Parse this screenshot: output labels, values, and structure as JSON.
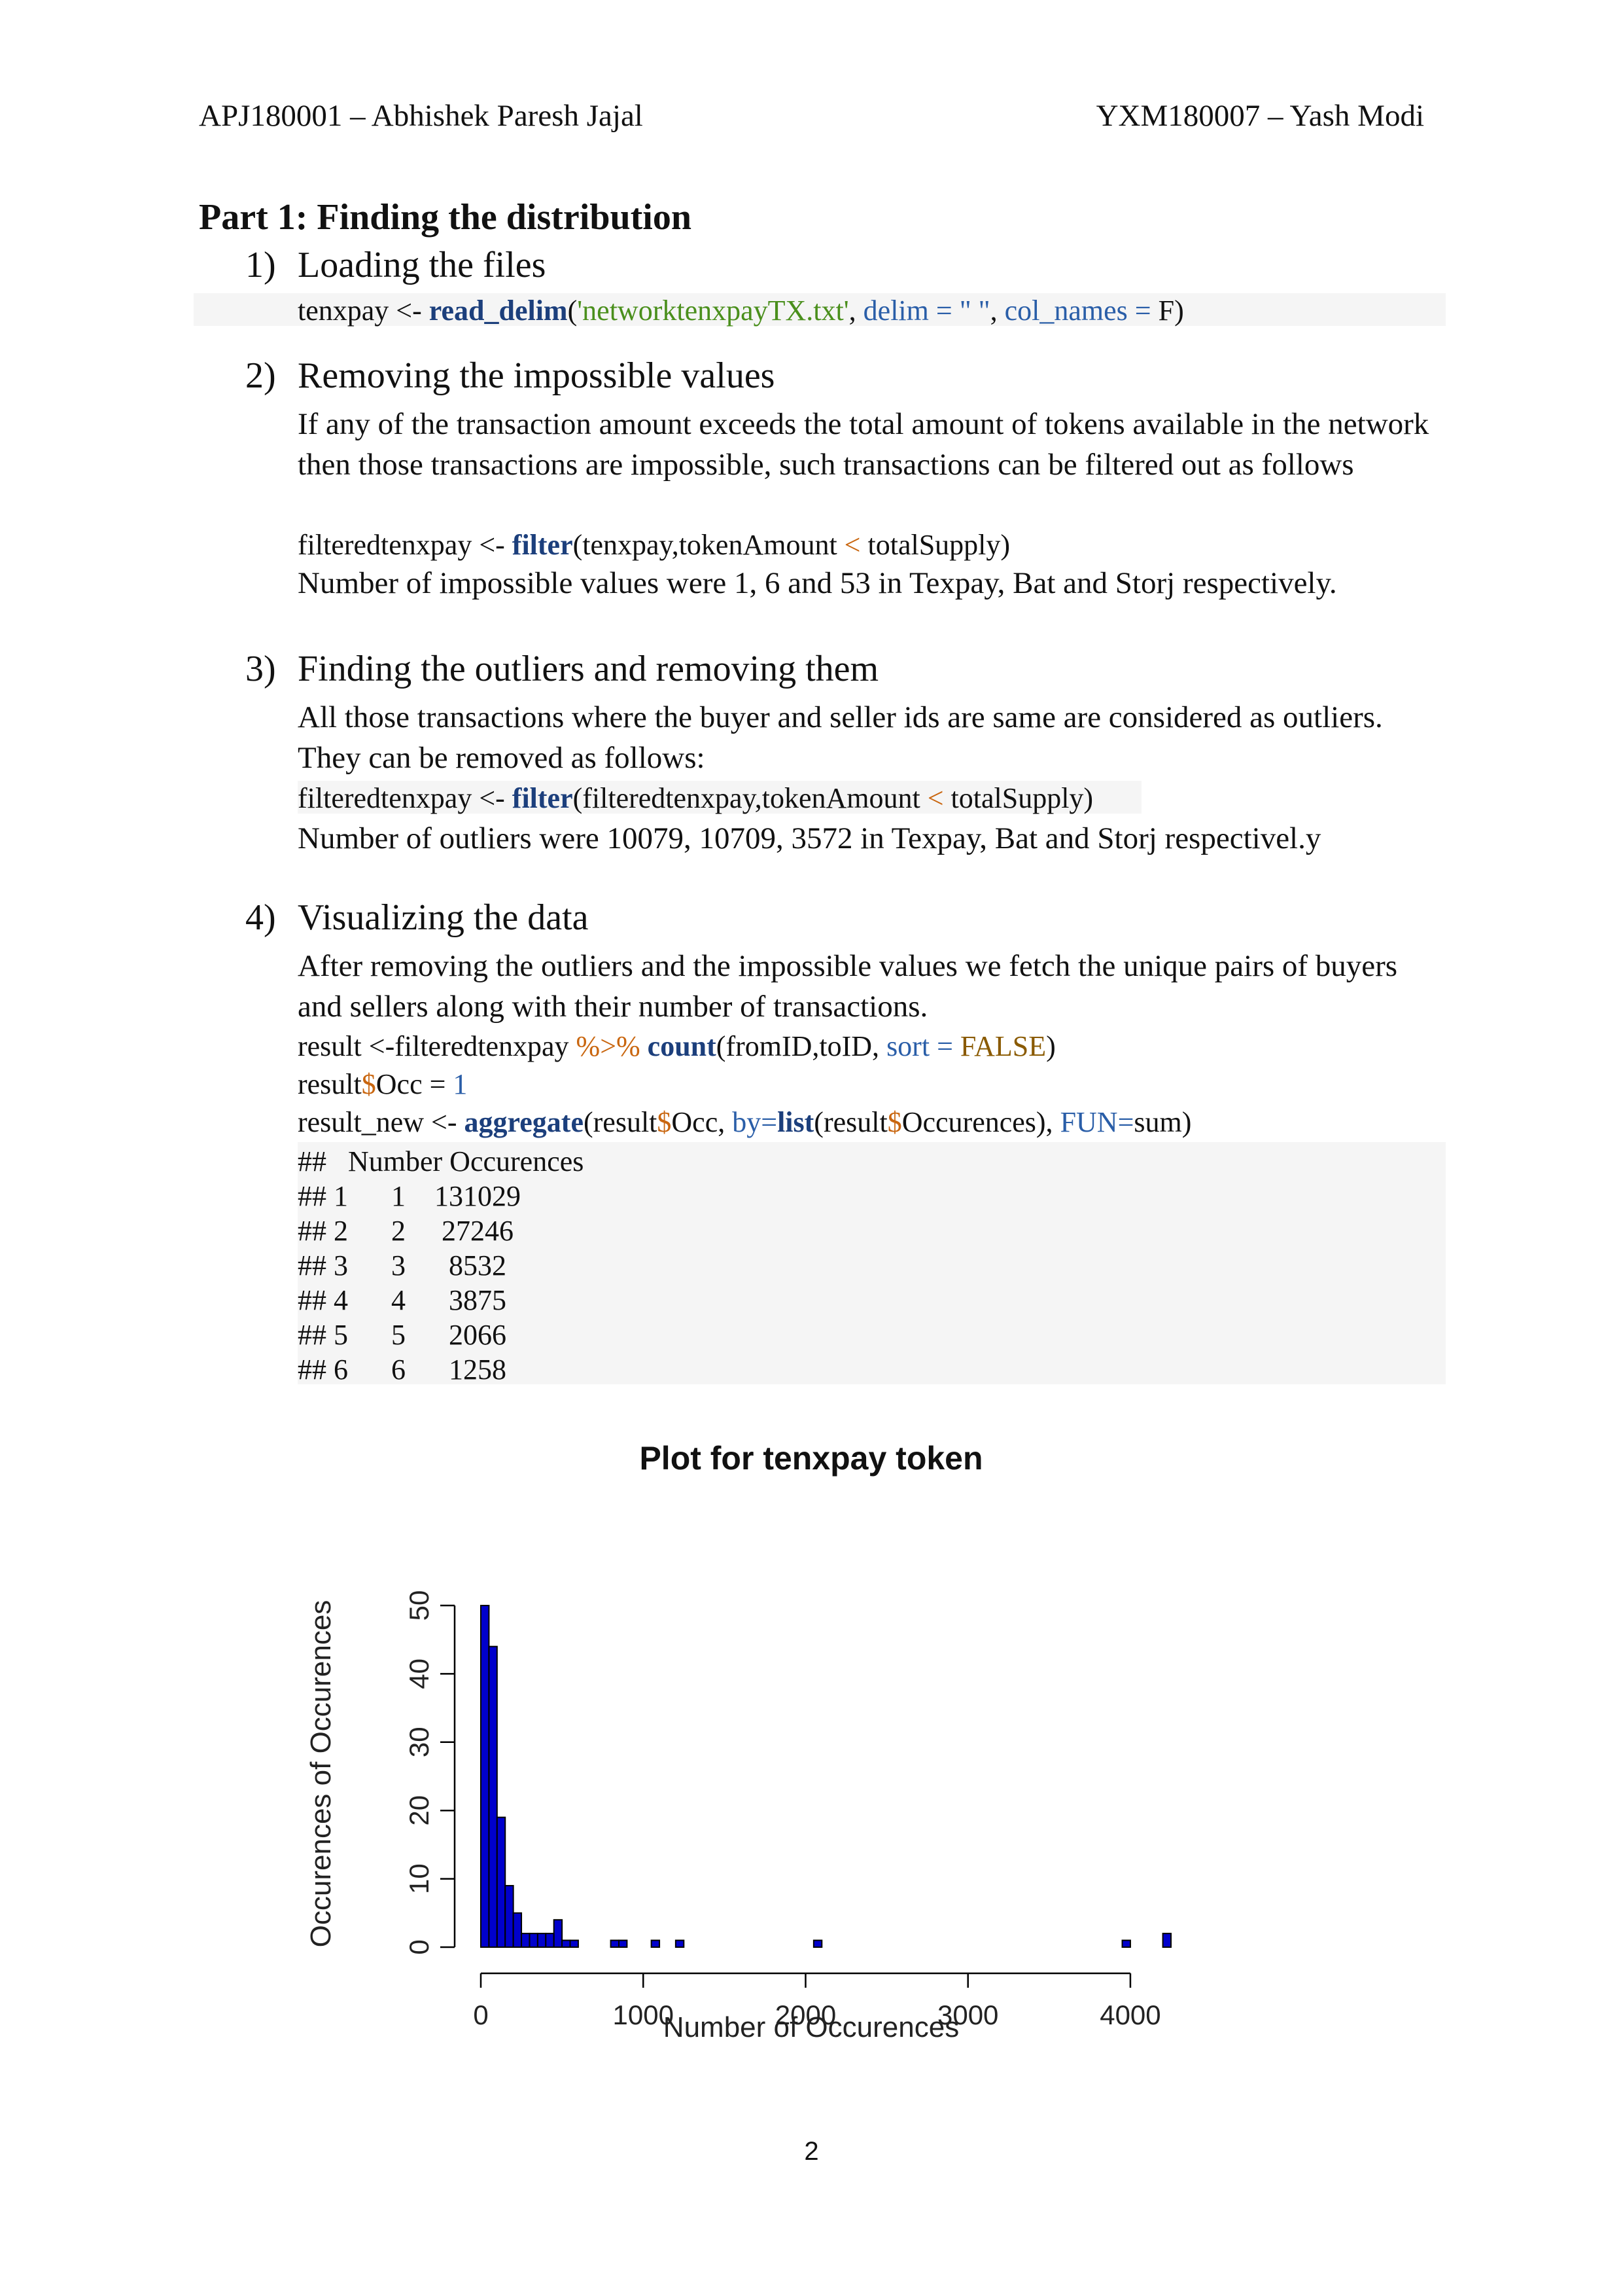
{
  "header": {
    "left": "APJ180001 – Abhishek Paresh Jajal",
    "right": "YXM180007 – Yash Modi"
  },
  "part_title": "Part 1: Finding the distribution",
  "sections": [
    {
      "num": "1)",
      "title": "Loading the files",
      "code": {
        "a": "tenxpay <- ",
        "fn": "read_delim",
        "b": "(",
        "str": "'networktenxpayTX.txt'",
        "c": ", ",
        "arg1": "delim = \" \"",
        "d": ", ",
        "arg2": "col_names = ",
        "e": "F)"
      }
    },
    {
      "num": "2)",
      "title": "Removing the impossible values",
      "para": "If any of the transaction amount exceeds the total amount of tokens available in the network then those transactions are impossible, such transactions can be filtered out as follows",
      "code": {
        "a": "filteredtenxpay <- ",
        "fn": "filter",
        "b": "(tenxpay,tokenAmount ",
        "op": "<",
        "c": " totalSupply)"
      },
      "after": "Number of impossible values were 1, 6 and 53 in Texpay, Bat and Storj respectively."
    },
    {
      "num": "3)",
      "title": "Finding the outliers and removing them",
      "para": "All those transactions where the buyer and seller ids are same are considered as outliers. They can be removed as follows:",
      "code": {
        "a": "filteredtenxpay <- ",
        "fn": "filter",
        "b": "(filteredtenxpay,tokenAmount ",
        "op": "<",
        "c": " totalSupply)"
      },
      "after": "Number of outliers were 10079, 10709, 3572 in Texpay, Bat and Storj respectivel.y"
    },
    {
      "num": "4)",
      "title": "Visualizing the data",
      "para": "After removing the outliers and the impossible values we fetch the unique pairs of buyers and sellers along with their number of transactions.",
      "code1": {
        "a": "result <-filteredtenxpay ",
        "op": "%>%",
        "b": " ",
        "fn": "count",
        "c": "(fromID,toID, ",
        "arg": "sort = ",
        "val": "FALSE",
        "d": ")"
      },
      "code2": {
        "a": "result",
        "op": "$",
        "b": "Occ = ",
        "num": "1"
      },
      "code3": {
        "a": "result_new <- ",
        "fn": "aggregate",
        "b": "(result",
        "op1": "$",
        "c": "Occ, ",
        "arg1": "by=",
        "fn2": "list",
        "d": "(result",
        "op2": "$",
        "e": "Occurences), ",
        "arg2": "FUN=",
        "f": "sum)"
      },
      "output_header": "##   Number Occurences",
      "output_rows": [
        "## 1      1    131029",
        "## 2      2     27246",
        "## 3      3      8532",
        "## 4      4      3875",
        "## 5      5      2066",
        "## 6      6      1258"
      ]
    }
  ],
  "chart_data": {
    "type": "bar",
    "title": "Plot for tenxpay token",
    "xlabel": "Number of Occurences",
    "ylabel": "Occurences of Occurences",
    "xlim": [
      0,
      4250
    ],
    "ylim": [
      0,
      50
    ],
    "x_ticks": [
      0,
      1000,
      2000,
      3000,
      4000
    ],
    "y_ticks": [
      0,
      10,
      20,
      30,
      40,
      50
    ],
    "bin_width": 50,
    "bar_color": "#0000cc",
    "bins": [
      {
        "x0": 0,
        "x1": 50,
        "count": 50
      },
      {
        "x0": 50,
        "x1": 100,
        "count": 44
      },
      {
        "x0": 100,
        "x1": 150,
        "count": 19
      },
      {
        "x0": 150,
        "x1": 200,
        "count": 9
      },
      {
        "x0": 200,
        "x1": 250,
        "count": 5
      },
      {
        "x0": 250,
        "x1": 300,
        "count": 2
      },
      {
        "x0": 300,
        "x1": 350,
        "count": 2
      },
      {
        "x0": 350,
        "x1": 400,
        "count": 2
      },
      {
        "x0": 400,
        "x1": 450,
        "count": 2
      },
      {
        "x0": 450,
        "x1": 500,
        "count": 4
      },
      {
        "x0": 500,
        "x1": 550,
        "count": 1
      },
      {
        "x0": 550,
        "x1": 600,
        "count": 1
      },
      {
        "x0": 800,
        "x1": 850,
        "count": 1
      },
      {
        "x0": 850,
        "x1": 900,
        "count": 1
      },
      {
        "x0": 1050,
        "x1": 1100,
        "count": 1
      },
      {
        "x0": 1200,
        "x1": 1250,
        "count": 1
      },
      {
        "x0": 2050,
        "x1": 2100,
        "count": 1
      },
      {
        "x0": 3950,
        "x1": 4000,
        "count": 1
      },
      {
        "x0": 4200,
        "x1": 4250,
        "count": 2
      }
    ]
  },
  "page_number": "2"
}
